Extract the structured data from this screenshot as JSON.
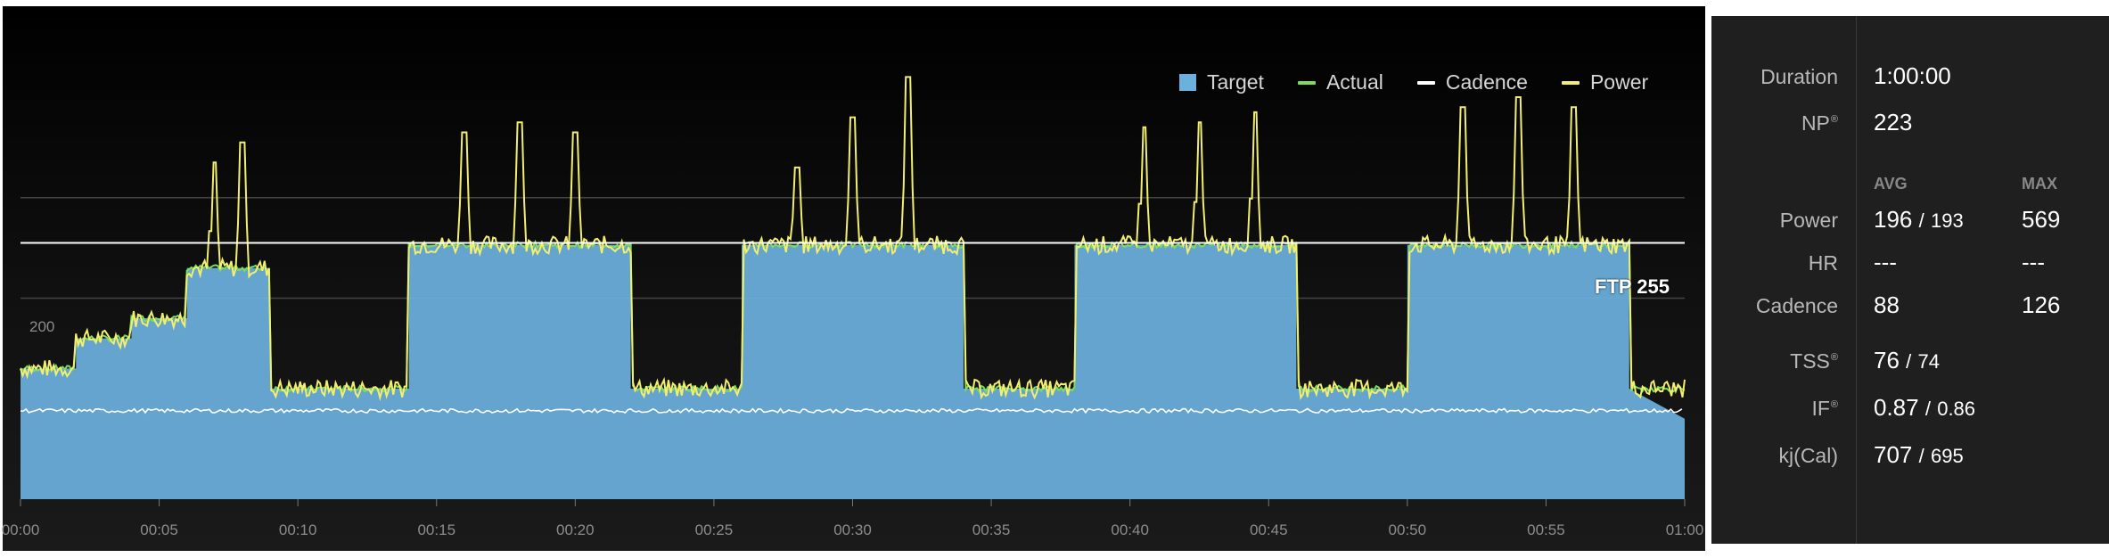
{
  "chart_data": {
    "type": "area",
    "legend": [
      {
        "name": "Target",
        "color": "#6bb1de",
        "style": "box"
      },
      {
        "name": "Actual",
        "color": "#7ddc5a",
        "style": "line"
      },
      {
        "name": "Cadence",
        "color": "#ffffff",
        "style": "line"
      },
      {
        "name": "Power",
        "color": "#f2ef6e",
        "style": "line"
      }
    ],
    "legend_position": "top-right",
    "x_ticks": [
      "00:00",
      "00:05",
      "00:10",
      "00:15",
      "00:20",
      "00:25",
      "00:30",
      "00:35",
      "00:40",
      "00:45",
      "00:50",
      "00:55",
      "01:00"
    ],
    "xlim": [
      0,
      60
    ],
    "ylim": [
      0,
      400
    ],
    "y_ticks": [
      "200"
    ],
    "ftp": {
      "label": "FTP 255",
      "value": 255
    },
    "target_series": {
      "name": "Target",
      "x": [
        0,
        2,
        2,
        4,
        4,
        6,
        6,
        9,
        9,
        14,
        14,
        22,
        22,
        26,
        26,
        34,
        34,
        38,
        38,
        46,
        46,
        50,
        50,
        58,
        58,
        60
      ],
      "y": [
        130,
        130,
        160,
        160,
        180,
        180,
        230,
        230,
        110,
        110,
        253,
        253,
        110,
        110,
        253,
        253,
        110,
        110,
        253,
        253,
        110,
        110,
        253,
        253,
        110,
        80
      ]
    },
    "power_spikes": [
      {
        "x": 7,
        "y": 335
      },
      {
        "x": 8,
        "y": 355
      },
      {
        "x": 16,
        "y": 365
      },
      {
        "x": 18,
        "y": 375
      },
      {
        "x": 20,
        "y": 365
      },
      {
        "x": 28,
        "y": 330
      },
      {
        "x": 30,
        "y": 380
      },
      {
        "x": 32,
        "y": 420
      },
      {
        "x": 40.5,
        "y": 370
      },
      {
        "x": 42.5,
        "y": 375
      },
      {
        "x": 44.5,
        "y": 385
      },
      {
        "x": 52,
        "y": 390
      },
      {
        "x": 54,
        "y": 400
      },
      {
        "x": 56,
        "y": 390
      }
    ],
    "cadence_level": 88
  },
  "stats": {
    "duration": {
      "label": "Duration",
      "value": "1:00:00"
    },
    "np": {
      "label": "NP",
      "sup": "®",
      "value": "223"
    },
    "headers": {
      "avg": "AVG",
      "max": "MAX"
    },
    "power": {
      "label": "Power",
      "avg": "196",
      "sep": "/",
      "avg2": "193",
      "max": "569"
    },
    "hr": {
      "label": "HR",
      "avg": "---",
      "max": "---"
    },
    "cadence": {
      "label": "Cadence",
      "avg": "88",
      "max": "126"
    },
    "tss": {
      "label": "TSS",
      "sup": "®",
      "value": "76",
      "sep": "/",
      "value2": "74"
    },
    "if": {
      "label": "IF",
      "sup": "®",
      "value": "0.87",
      "sep": "/",
      "value2": "0.86"
    },
    "kj": {
      "label": "kj(Cal)",
      "value": "707",
      "sep": "/",
      "value2": "695"
    }
  }
}
